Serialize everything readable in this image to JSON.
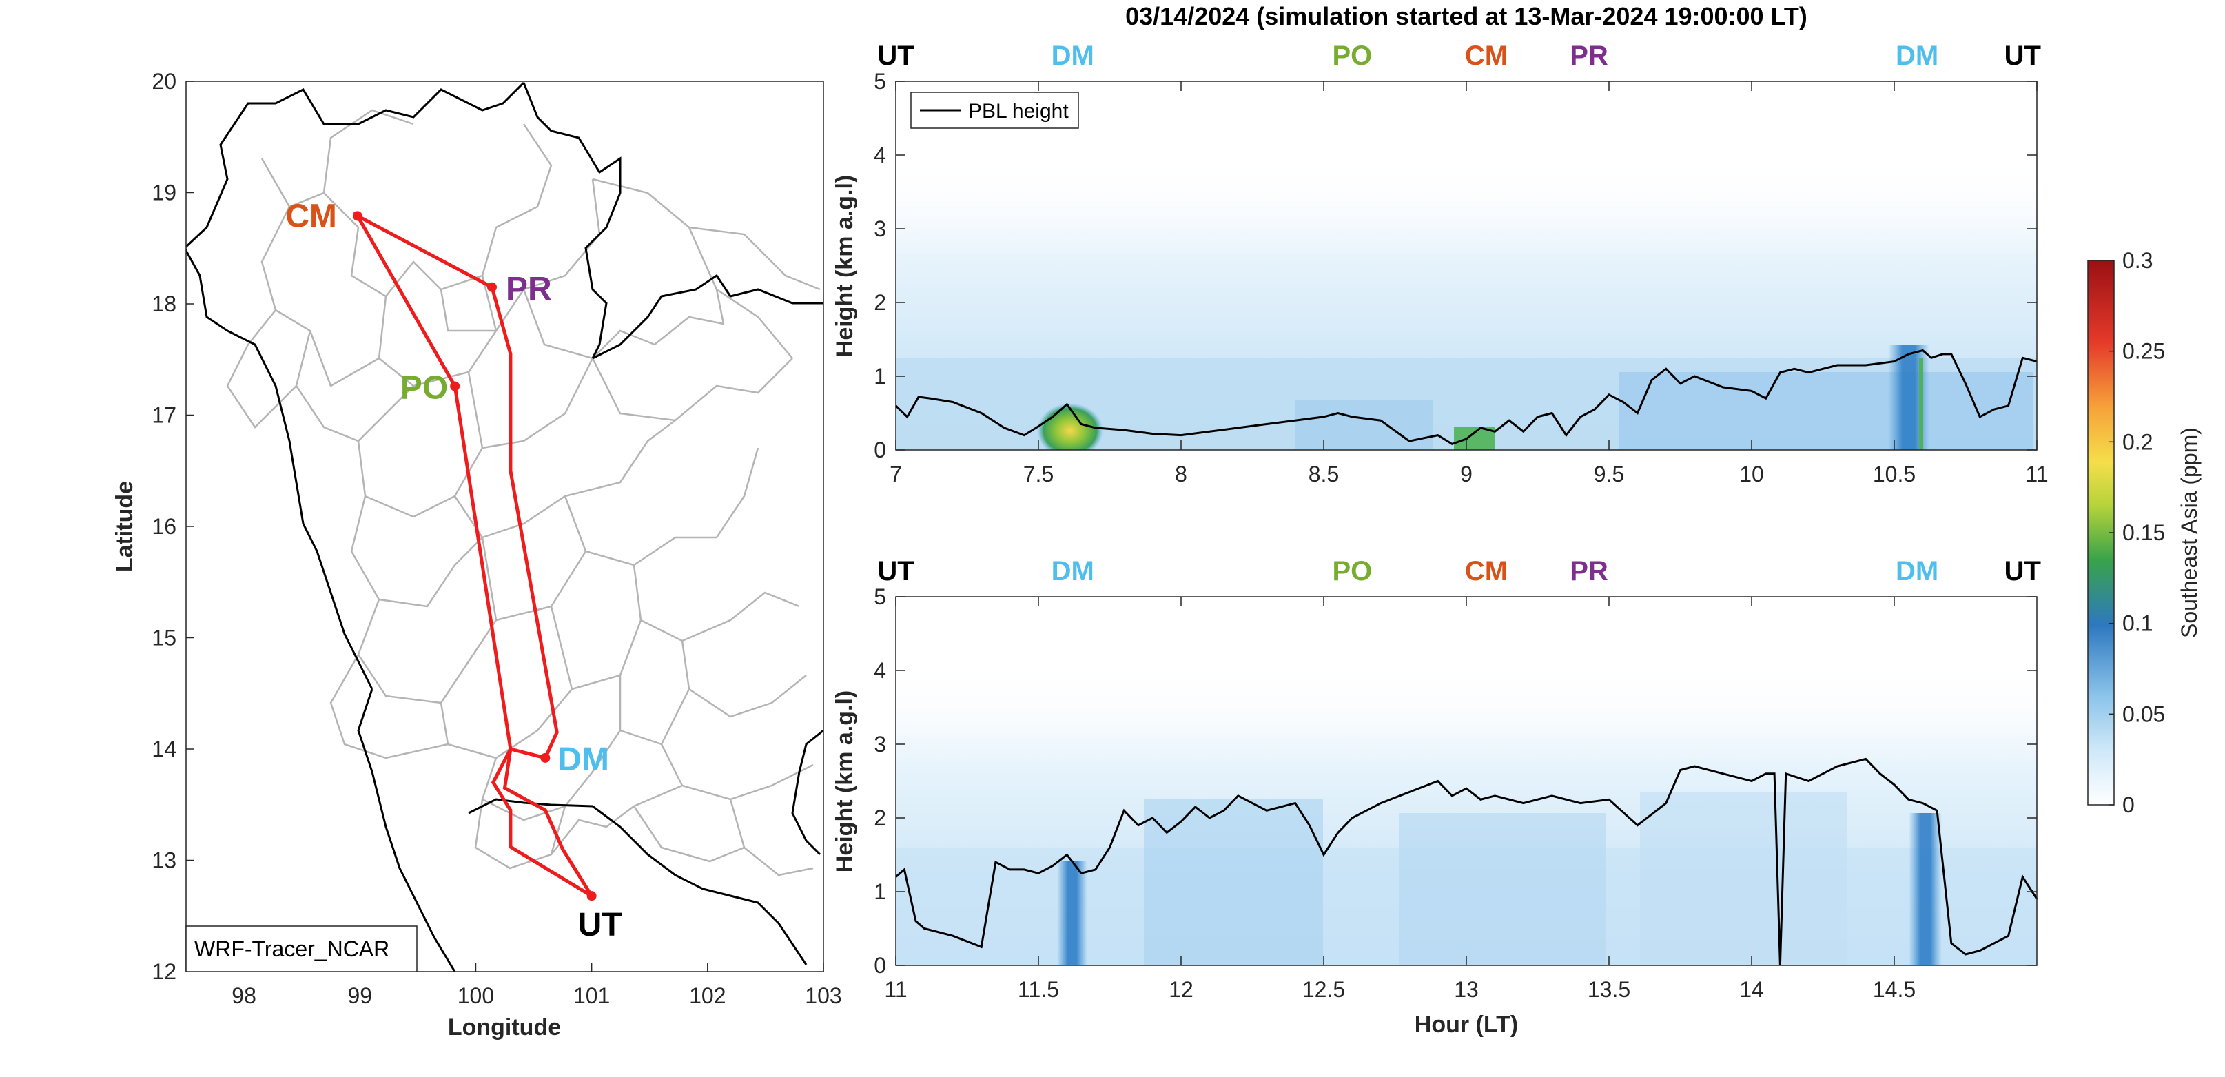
{
  "figure_title": "03/14/2024 (simulation started at 13-Mar-2024 19:00:00 LT)",
  "colors": {
    "UT": "#000000",
    "DM": "#4DBEEE",
    "PO": "#77AC30",
    "CM": "#D95319",
    "PR": "#7E2F8E",
    "route": "#EE1C1C",
    "border": "#000000",
    "provinces": "#B4B4B4"
  },
  "chart_data": [
    {
      "type": "map",
      "xlabel": "Longitude",
      "ylabel": "Latitude",
      "xlim": [
        97.5,
        103
      ],
      "ylim": [
        12,
        20
      ],
      "xticks": [
        "98",
        "99",
        "100",
        "101",
        "102",
        "103"
      ],
      "yticks": [
        "12",
        "13",
        "14",
        "15",
        "16",
        "17",
        "18",
        "19",
        "20"
      ],
      "source_label": "WRF-Tracer_NCAR",
      "stations": [
        {
          "code": "CM",
          "lon": 98.98,
          "lat": 18.79
        },
        {
          "code": "PR",
          "lon": 100.14,
          "lat": 18.15
        },
        {
          "code": "PO",
          "lon": 99.82,
          "lat": 17.26
        },
        {
          "code": "DM",
          "lon": 100.6,
          "lat": 13.92
        },
        {
          "code": "UT",
          "lon": 101.0,
          "lat": 12.68
        }
      ],
      "route": [
        [
          101.0,
          12.68
        ],
        [
          100.3,
          13.12
        ],
        [
          100.3,
          13.45
        ],
        [
          100.15,
          13.7
        ],
        [
          100.3,
          14.0
        ],
        [
          100.6,
          13.92
        ],
        [
          100.7,
          14.15
        ],
        [
          100.3,
          16.5
        ],
        [
          100.3,
          17.55
        ],
        [
          100.14,
          18.15
        ],
        [
          98.98,
          18.79
        ],
        [
          99.82,
          17.26
        ],
        [
          100.3,
          14.0
        ],
        [
          100.25,
          13.65
        ],
        [
          100.6,
          13.45
        ],
        [
          100.75,
          13.1
        ],
        [
          101.0,
          12.68
        ]
      ]
    },
    {
      "type": "heatmap",
      "xlim": [
        7,
        11
      ],
      "ylim": [
        0,
        5
      ],
      "xticks": [
        "7",
        "7.5",
        "8",
        "8.5",
        "9",
        "9.5",
        "10",
        "10.5",
        "11"
      ],
      "yticks": [
        "0",
        "1",
        "2",
        "3",
        "4",
        "5"
      ],
      "ylabel": "Height (km a.g.l)",
      "legend": "PBL height",
      "top_labels": [
        {
          "text": "UT",
          "x": 7.0
        },
        {
          "text": "DM",
          "x": 7.62
        },
        {
          "text": "PO",
          "x": 8.6
        },
        {
          "text": "CM",
          "x": 9.07
        },
        {
          "text": "PR",
          "x": 9.43
        },
        {
          "text": "DM",
          "x": 10.58
        },
        {
          "text": "UT",
          "x": 10.95
        }
      ],
      "series": [
        {
          "name": "PBL height",
          "x": [
            7.0,
            7.04,
            7.08,
            7.12,
            7.2,
            7.3,
            7.38,
            7.45,
            7.5,
            7.55,
            7.6,
            7.65,
            7.7,
            7.8,
            7.9,
            8.0,
            8.1,
            8.2,
            8.3,
            8.4,
            8.5,
            8.55,
            8.6,
            8.7,
            8.8,
            8.9,
            8.95,
            9.0,
            9.05,
            9.1,
            9.15,
            9.2,
            9.25,
            9.3,
            9.35,
            9.4,
            9.45,
            9.5,
            9.55,
            9.6,
            9.65,
            9.7,
            9.75,
            9.8,
            9.9,
            10.0,
            10.05,
            10.1,
            10.15,
            10.2,
            10.3,
            10.4,
            10.5,
            10.55,
            10.6,
            10.63,
            10.67,
            10.7,
            10.75,
            10.8,
            10.85,
            10.9,
            10.95,
            11.0
          ],
          "y": [
            0.6,
            0.45,
            0.72,
            0.7,
            0.65,
            0.5,
            0.3,
            0.2,
            0.32,
            0.45,
            0.62,
            0.35,
            0.3,
            0.27,
            0.22,
            0.2,
            0.25,
            0.3,
            0.35,
            0.4,
            0.45,
            0.5,
            0.45,
            0.4,
            0.12,
            0.2,
            0.08,
            0.15,
            0.3,
            0.25,
            0.4,
            0.25,
            0.45,
            0.5,
            0.2,
            0.45,
            0.55,
            0.75,
            0.65,
            0.5,
            0.95,
            1.1,
            0.9,
            1.0,
            0.85,
            0.8,
            0.7,
            1.05,
            1.1,
            1.05,
            1.15,
            1.15,
            1.2,
            1.3,
            1.35,
            1.25,
            1.3,
            1.3,
            0.9,
            0.45,
            0.55,
            0.6,
            1.25,
            1.2
          ]
        }
      ]
    },
    {
      "type": "heatmap",
      "xlim": [
        11,
        15
      ],
      "ylim": [
        0,
        5
      ],
      "xticks": [
        "11",
        "11.5",
        "12",
        "12.5",
        "13",
        "13.5",
        "14",
        "14.5"
      ],
      "yticks": [
        "0",
        "1",
        "2",
        "3",
        "4",
        "5"
      ],
      "ylabel": "Height (km a.g.l)",
      "xlabel": "Hour (LT)",
      "top_labels": [
        {
          "text": "UT",
          "x": 11.0
        },
        {
          "text": "DM",
          "x": 11.62
        },
        {
          "text": "PO",
          "x": 12.6
        },
        {
          "text": "CM",
          "x": 13.07
        },
        {
          "text": "PR",
          "x": 13.43
        },
        {
          "text": "DM",
          "x": 14.58
        },
        {
          "text": "UT",
          "x": 14.95
        }
      ],
      "series": [
        {
          "name": "PBL height",
          "x": [
            11.0,
            11.03,
            11.07,
            11.1,
            11.2,
            11.3,
            11.35,
            11.4,
            11.45,
            11.5,
            11.55,
            11.6,
            11.65,
            11.7,
            11.75,
            11.8,
            11.85,
            11.9,
            11.95,
            12.0,
            12.05,
            12.1,
            12.15,
            12.2,
            12.3,
            12.4,
            12.45,
            12.5,
            12.55,
            12.6,
            12.7,
            12.8,
            12.9,
            12.95,
            13.0,
            13.05,
            13.1,
            13.2,
            13.3,
            13.4,
            13.5,
            13.6,
            13.7,
            13.75,
            13.8,
            13.9,
            14.0,
            14.05,
            14.08,
            14.1,
            14.12,
            14.2,
            14.3,
            14.4,
            14.45,
            14.5,
            14.55,
            14.6,
            14.65,
            14.7,
            14.75,
            14.8,
            14.85,
            14.9,
            14.95,
            15.0
          ],
          "y": [
            1.2,
            1.3,
            0.6,
            0.5,
            0.4,
            0.25,
            1.4,
            1.3,
            1.3,
            1.25,
            1.35,
            1.5,
            1.25,
            1.3,
            1.6,
            2.1,
            1.9,
            2.0,
            1.8,
            1.95,
            2.15,
            2.0,
            2.1,
            2.3,
            2.1,
            2.2,
            1.9,
            1.5,
            1.8,
            2.0,
            2.2,
            2.35,
            2.5,
            2.3,
            2.4,
            2.25,
            2.3,
            2.2,
            2.3,
            2.2,
            2.25,
            1.9,
            2.2,
            2.65,
            2.7,
            2.6,
            2.5,
            2.6,
            2.6,
            0.0,
            2.6,
            2.5,
            2.7,
            2.8,
            2.6,
            2.45,
            2.25,
            2.2,
            2.1,
            0.3,
            0.15,
            0.2,
            0.3,
            0.4,
            1.2,
            0.9
          ]
        }
      ]
    },
    {
      "type": "colorbar",
      "label": "Southeast Asia (ppm)",
      "range": [
        0,
        0.3
      ],
      "ticks": [
        "0",
        "0.05",
        "0.1",
        "0.15",
        "0.2",
        "0.25",
        "0.3"
      ]
    }
  ]
}
